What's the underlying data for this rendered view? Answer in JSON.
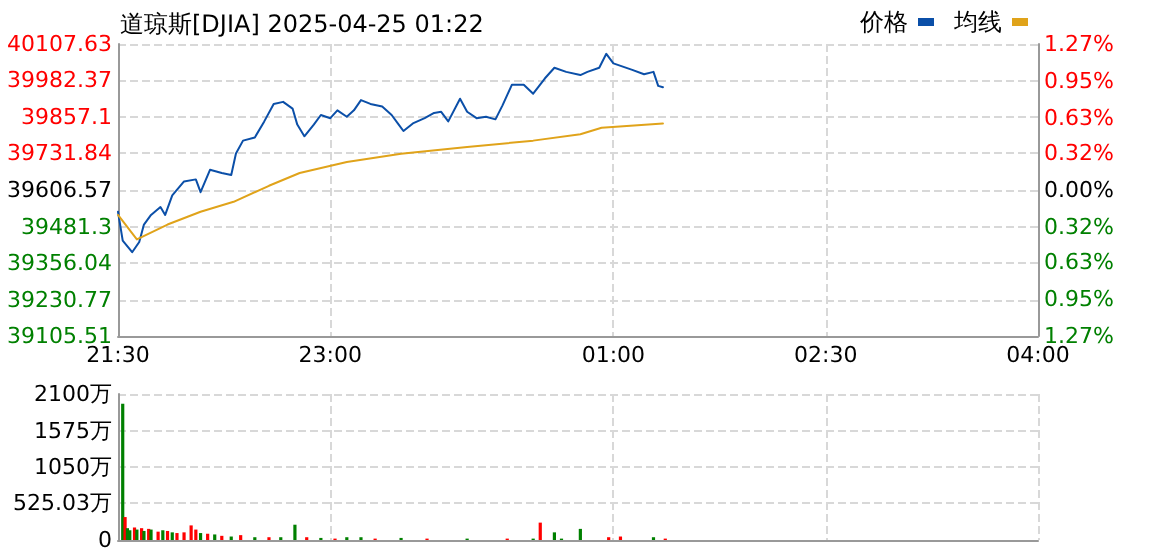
{
  "chart_data": [
    {
      "type": "line",
      "title": "道琼斯[DJIA] 2025-04-25 01:22",
      "series": [
        {
          "name": "价格",
          "color": "#0b4fa8",
          "x": [
            "2025-04-24T21:30",
            "2025-04-24T21:32",
            "2025-04-24T21:36",
            "2025-04-24T21:39",
            "2025-04-24T21:41",
            "2025-04-24T21:44",
            "2025-04-24T21:48",
            "2025-04-24T21:50",
            "2025-04-24T21:53",
            "2025-04-24T21:58",
            "2025-04-24T22:03",
            "2025-04-24T22:05",
            "2025-04-24T22:09",
            "2025-04-24T22:14",
            "2025-04-24T22:18",
            "2025-04-24T22:20",
            "2025-04-24T22:23",
            "2025-04-24T22:28",
            "2025-04-24T22:32",
            "2025-04-24T22:36",
            "2025-04-24T22:40",
            "2025-04-24T22:44",
            "2025-04-24T22:46",
            "2025-04-24T22:49",
            "2025-04-24T22:53",
            "2025-04-24T22:56",
            "2025-04-24T23:00",
            "2025-04-24T23:03",
            "2025-04-24T23:07",
            "2025-04-24T23:10",
            "2025-04-24T23:13",
            "2025-04-24T23:17",
            "2025-04-24T23:22",
            "2025-04-24T23:26",
            "2025-04-24T23:29",
            "2025-04-24T23:31",
            "2025-04-24T23:35",
            "2025-04-24T23:40",
            "2025-04-24T23:44",
            "2025-04-24T23:47",
            "2025-04-24T23:50",
            "2025-04-24T23:55",
            "2025-04-24T23:58",
            "2025-04-25T00:02",
            "2025-04-25T00:06",
            "2025-04-25T00:10",
            "2025-04-25T00:13",
            "2025-04-25T00:17",
            "2025-04-25T00:22",
            "2025-04-25T00:26",
            "2025-04-25T00:31",
            "2025-04-25T00:35",
            "2025-04-25T00:40",
            "2025-04-25T00:46",
            "2025-04-25T00:49",
            "2025-04-25T00:54",
            "2025-04-25T00:57",
            "2025-04-25T01:00",
            "2025-04-25T01:04",
            "2025-04-25T01:08",
            "2025-04-25T01:13",
            "2025-04-25T01:17",
            "2025-04-25T01:19",
            "2025-04-25T01:21"
          ],
          "values": [
            39532,
            39433,
            39393,
            39428,
            39488,
            39521,
            39548,
            39521,
            39588,
            39636,
            39643,
            39599,
            39676,
            39665,
            39658,
            39732,
            39776,
            39787,
            39842,
            39902,
            39909,
            39886,
            39831,
            39791,
            39831,
            39864,
            39853,
            39880,
            39858,
            39880,
            39915,
            39902,
            39893,
            39864,
            39831,
            39809,
            39835,
            39853,
            39871,
            39875,
            39842,
            39920,
            39875,
            39853,
            39858,
            39849,
            39897,
            39968,
            39968,
            39937,
            39990,
            40026,
            40012,
            40001,
            40012,
            40026,
            40074,
            40041,
            40030,
            40019,
            40004,
            40012,
            39964,
            39959
          ]
        },
        {
          "name": "均线",
          "color": "#e0a31a",
          "x": [
            "2025-04-24T21:30",
            "2025-04-24T21:38",
            "2025-04-24T21:51",
            "2025-04-24T22:05",
            "2025-04-24T22:19",
            "2025-04-24T22:34",
            "2025-04-24T22:47",
            "2025-04-24T23:07",
            "2025-04-24T23:30",
            "2025-04-24T23:58",
            "2025-04-25T00:26",
            "2025-04-25T00:46",
            "2025-04-25T00:55",
            "2025-04-25T01:21"
          ],
          "values": [
            39521,
            39437,
            39488,
            39532,
            39566,
            39621,
            39665,
            39703,
            39731,
            39754,
            39776,
            39798,
            39820,
            39835
          ]
        }
      ],
      "xlim": [
        "2025-04-24T21:30",
        "2025-04-25T04:00"
      ],
      "xticks": [
        {
          "value": "2025-04-24T21:30",
          "label": "21:30"
        },
        {
          "value": "2025-04-24T23:00",
          "label": "23:00"
        },
        {
          "value": "2025-04-25T01:00",
          "label": "01:00"
        },
        {
          "value": "2025-04-25T02:30",
          "label": "02:30"
        },
        {
          "value": "2025-04-25T04:00",
          "label": "04:00"
        }
      ],
      "ylim": [
        39105.51,
        40107.63
      ],
      "yticks": [
        39105.51,
        39230.77,
        39356.04,
        39481.3,
        39606.57,
        39731.84,
        39857.1,
        39982.37,
        40107.63
      ],
      "y2lim": [
        -1.27,
        1.27
      ],
      "y2ticks": [
        {
          "value": -1.27,
          "label": "1.27%"
        },
        {
          "value": -0.95,
          "label": "0.95%"
        },
        {
          "value": -0.63,
          "label": "0.63%"
        },
        {
          "value": -0.32,
          "label": "0.32%"
        },
        {
          "value": 0,
          "label": "0.00%"
        },
        {
          "value": 0.32,
          "label": "0.32%"
        },
        {
          "value": 0.63,
          "label": "0.63%"
        },
        {
          "value": 0.95,
          "label": "0.95%"
        },
        {
          "value": 1.27,
          "label": "1.27%"
        }
      ],
      "grid": true,
      "legend": "top right",
      "marker": "none",
      "line_style": "solid"
    },
    {
      "type": "bar",
      "x": [
        "2025-04-24T21:32",
        "2025-04-24T21:33",
        "2025-04-24T21:34",
        "2025-04-24T21:35",
        "2025-04-24T21:37",
        "2025-04-24T21:38",
        "2025-04-24T21:40",
        "2025-04-24T21:41",
        "2025-04-24T21:43",
        "2025-04-24T21:44",
        "2025-04-24T21:47",
        "2025-04-24T21:49",
        "2025-04-24T21:51",
        "2025-04-24T21:53",
        "2025-04-24T21:55",
        "2025-04-24T21:58",
        "2025-04-24T22:01",
        "2025-04-24T22:03",
        "2025-04-24T22:05",
        "2025-04-24T22:08",
        "2025-04-24T22:11",
        "2025-04-24T22:14",
        "2025-04-24T22:18",
        "2025-04-24T22:22",
        "2025-04-24T22:28",
        "2025-04-24T22:34",
        "2025-04-24T22:39",
        "2025-04-24T22:45",
        "2025-04-24T22:50",
        "2025-04-24T22:56",
        "2025-04-24T23:02",
        "2025-04-24T23:07",
        "2025-04-24T23:13",
        "2025-04-24T23:19",
        "2025-04-24T23:30",
        "2025-04-24T23:41",
        "2025-04-24T23:58",
        "2025-04-25T00:15",
        "2025-04-25T00:26",
        "2025-04-25T00:29",
        "2025-04-25T00:35",
        "2025-04-25T00:38",
        "2025-04-25T00:46",
        "2025-04-25T00:58",
        "2025-04-25T01:03",
        "2025-04-25T01:17",
        "2025-04-25T01:22"
      ],
      "values": [
        1960,
        330,
        170,
        140,
        180,
        150,
        170,
        130,
        160,
        150,
        120,
        140,
        130,
        110,
        100,
        110,
        210,
        150,
        100,
        90,
        80,
        60,
        50,
        70,
        40,
        40,
        40,
        220,
        40,
        30,
        20,
        40,
        40,
        20,
        30,
        20,
        20,
        20,
        20,
        250,
        110,
        20,
        160,
        40,
        50,
        40,
        20
      ],
      "colors": [
        "#008000",
        "#ff0000",
        "#008000",
        "#008000",
        "#ff0000",
        "#008000",
        "#ff0000",
        "#008000",
        "#ff0000",
        "#008000",
        "#ff0000",
        "#008000",
        "#ff0000",
        "#008000",
        "#ff0000",
        "#ff0000",
        "#ff0000",
        "#ff0000",
        "#008000",
        "#ff0000",
        "#008000",
        "#ff0000",
        "#008000",
        "#ff0000",
        "#008000",
        "#ff0000",
        "#008000",
        "#008000",
        "#ff0000",
        "#008000",
        "#ff0000",
        "#008000",
        "#008000",
        "#ff0000",
        "#008000",
        "#ff0000",
        "#008000",
        "#ff0000",
        "#008000",
        "#ff0000",
        "#008000",
        "#008000",
        "#008000",
        "#ff0000",
        "#ff0000",
        "#008000",
        "#ff0000"
      ],
      "xlim": [
        "2025-04-24T21:30",
        "2025-04-25T04:00"
      ],
      "xticks": [
        {
          "value": "2025-04-24T21:30",
          "label": null
        },
        {
          "value": "2025-04-24T23:00",
          "label": null
        },
        {
          "value": "2025-04-25T01:00",
          "label": null
        },
        {
          "value": "2025-04-25T02:30",
          "label": null
        },
        {
          "value": "2025-04-25T04:00",
          "label": null
        }
      ],
      "ylim": [
        0,
        2100
      ],
      "yticks": [
        0,
        {
          "value": 525.03,
          "label": "525.03万"
        },
        {
          "value": 1050,
          "label": "1050万"
        },
        {
          "value": 1575,
          "label": "1575万"
        },
        {
          "value": 2100,
          "label": "2100万"
        }
      ],
      "grid": true,
      "tick_labels": "y"
    }
  ]
}
